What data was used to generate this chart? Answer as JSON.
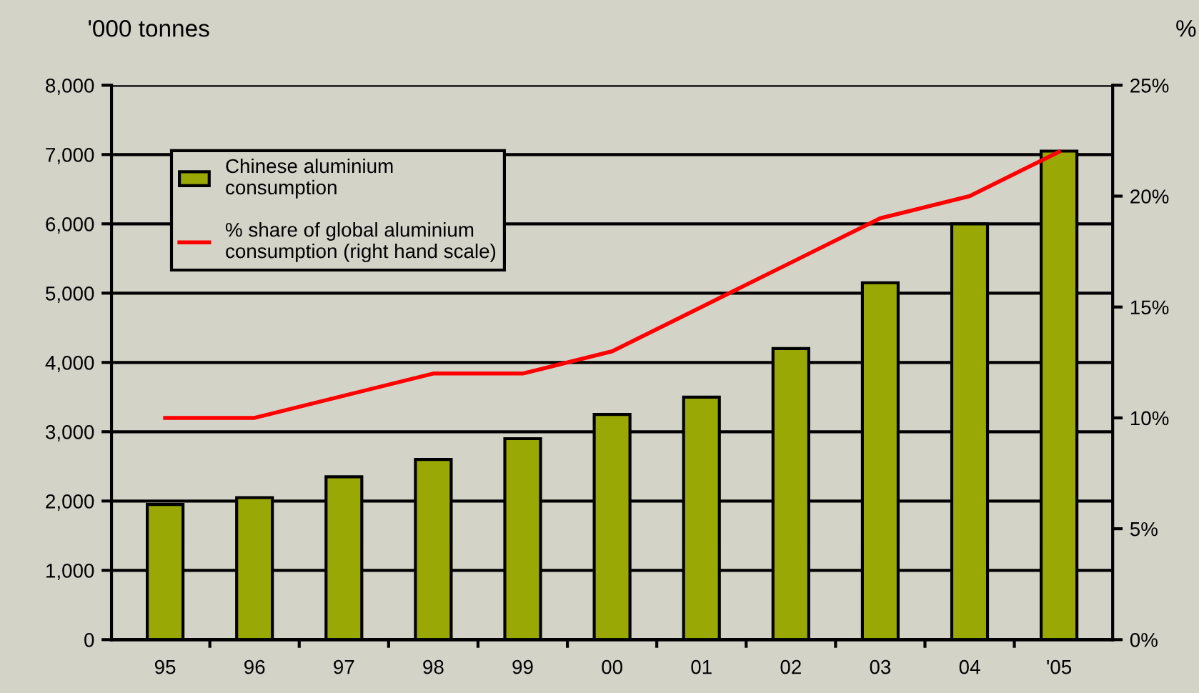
{
  "chart_data": {
    "type": "bar",
    "ylabel": "'000 tonnes",
    "y2label": "%",
    "categories": [
      "95",
      "96",
      "97",
      "98",
      "99",
      "00",
      "01",
      "02",
      "03",
      "04",
      "'05"
    ],
    "series": [
      {
        "name": "Chinese aluminium consumption",
        "color": "#99a805",
        "values": [
          1950,
          2050,
          2350,
          2600,
          2900,
          3250,
          3500,
          4200,
          5150,
          6000,
          7050
        ]
      },
      {
        "name": "% share of global aluminium consumption (right hand scale)",
        "type": "line",
        "axis": "y2",
        "color": "#ff0000",
        "values": [
          10,
          10,
          11,
          12,
          12,
          13,
          15,
          17,
          19,
          20,
          22
        ]
      }
    ],
    "ylim": [
      0,
      8000
    ],
    "yticks": [
      {
        "value": 0,
        "label": "0"
      },
      {
        "value": 1000,
        "label": "1,000"
      },
      {
        "value": 2000,
        "label": "2,000"
      },
      {
        "value": 3000,
        "label": "3,000"
      },
      {
        "value": 4000,
        "label": "4,000"
      },
      {
        "value": 5000,
        "label": "5,000"
      },
      {
        "value": 6000,
        "label": "6,000"
      },
      {
        "value": 7000,
        "label": "7,000"
      },
      {
        "value": 8000,
        "label": "8,000"
      }
    ],
    "y2lim": [
      0,
      25
    ],
    "y2ticks": [
      {
        "value": 0,
        "label": "0%"
      },
      {
        "value": 5,
        "label": "5%"
      },
      {
        "value": 10,
        "label": "10%"
      },
      {
        "value": 15,
        "label": "15%"
      },
      {
        "value": 20,
        "label": "20%"
      },
      {
        "value": 25,
        "label": "25%"
      }
    ],
    "grid": "y",
    "legend": "top left",
    "marker": "none",
    "line_style": "solid"
  }
}
